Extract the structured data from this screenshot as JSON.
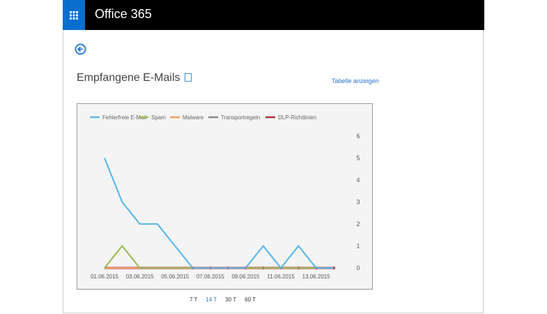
{
  "header": {
    "app_title": "Office 365",
    "waffle_icon": "app-launcher-icon"
  },
  "page": {
    "title": "Empfangene E-Mails",
    "table_link": "Tabelle anzeigen"
  },
  "time_ranges": [
    {
      "label": "7 T",
      "active": false
    },
    {
      "label": "14 T",
      "active": true
    },
    {
      "label": "30 T",
      "active": false
    },
    {
      "label": "60 T",
      "active": false
    }
  ],
  "chart_data": {
    "type": "line",
    "x": [
      "01.06.2015",
      "02.06.2015",
      "03.06.2015",
      "04.06.2015",
      "05.06.2015",
      "06.06.2015",
      "07.06.2015",
      "08.06.2015",
      "09.06.2015",
      "10.06.2015",
      "11.06.2015",
      "12.06.2015",
      "13.06.2015",
      "14.06.2015"
    ],
    "x_tick_labels": [
      "01.06.2015",
      "03.06.2015",
      "05.06.2015",
      "07.06.2015",
      "09.06.2015",
      "11.06.2015",
      "13.06.2015"
    ],
    "ylim": [
      0,
      6
    ],
    "y_ticks": [
      0,
      1,
      2,
      3,
      4,
      5,
      6
    ],
    "y_axis_side": "right",
    "legend_position": "top",
    "series": [
      {
        "name": "Fehlerfreie E-Mail",
        "color": "#5bb8e8",
        "values": [
          5,
          3,
          2,
          2,
          1,
          0,
          0,
          0,
          0,
          1,
          0,
          1,
          0,
          0
        ]
      },
      {
        "name": "Spam",
        "color": "#9bbb59",
        "values": [
          0,
          1,
          0,
          0,
          0,
          0,
          0,
          0,
          0,
          0,
          0,
          0,
          0,
          0
        ]
      },
      {
        "name": "Malware",
        "color": "#f0a060",
        "values": [
          0,
          0,
          0,
          0,
          0,
          0,
          0,
          0,
          0,
          0,
          0,
          0,
          0,
          0
        ]
      },
      {
        "name": "Transportregeln",
        "color": "#888888",
        "values": [
          0,
          0,
          0,
          0,
          0,
          0,
          0,
          0,
          0,
          0,
          0,
          0,
          0,
          0
        ]
      },
      {
        "name": "DLP-Richtlinien",
        "color": "#b0303a",
        "values": [
          0,
          0,
          0,
          0,
          0,
          0,
          0,
          0,
          0,
          0,
          0,
          0,
          0,
          0
        ]
      }
    ]
  }
}
